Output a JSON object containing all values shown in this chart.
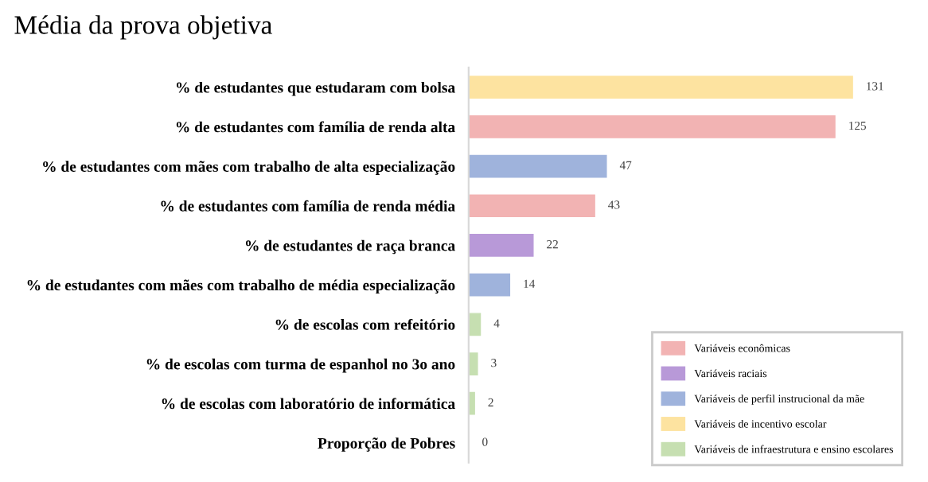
{
  "chart_data": {
    "type": "bar",
    "orientation": "horizontal",
    "title": "Média da prova objetiva",
    "categories": [
      "% de estudantes que estudaram com bolsa",
      "% de estudantes com família de renda alta",
      "% de estudantes com mães com trabalho de alta especialização",
      "% de estudantes com família de renda média",
      "% de estudantes de raça branca",
      "% de estudantes com mães com trabalho de média especialização",
      "% de escolas com refeitório",
      "% de escolas com turma de espanhol no 3o ano",
      "% de escolas com laboratório de informática",
      "Proporção de Pobres"
    ],
    "series": [
      {
        "name": "Variáveis econômicas",
        "color": "#f2b3b3",
        "values": [
          null,
          125,
          null,
          43,
          null,
          null,
          null,
          null,
          null,
          0
        ]
      },
      {
        "name": "Variáveis raciais",
        "color": "#b899d8",
        "values": [
          null,
          null,
          null,
          null,
          22,
          null,
          null,
          null,
          null,
          null
        ]
      },
      {
        "name": "Variáveis de perfil instrucional da mãe",
        "color": "#9fb3dc",
        "values": [
          null,
          null,
          47,
          null,
          null,
          14,
          null,
          null,
          null,
          null
        ]
      },
      {
        "name": "Variáveis de incentivo escolar",
        "color": "#fde3a0",
        "values": [
          131,
          null,
          null,
          null,
          null,
          null,
          null,
          null,
          null,
          null
        ]
      },
      {
        "name": "Variáveis de infraestrutura e ensino escolares",
        "color": "#c6dfb1",
        "values": [
          null,
          null,
          null,
          null,
          null,
          null,
          4,
          3,
          2,
          null
        ]
      }
    ],
    "data_labels": true,
    "legend": "bottom right",
    "grid": false,
    "tick_labels": "y"
  }
}
